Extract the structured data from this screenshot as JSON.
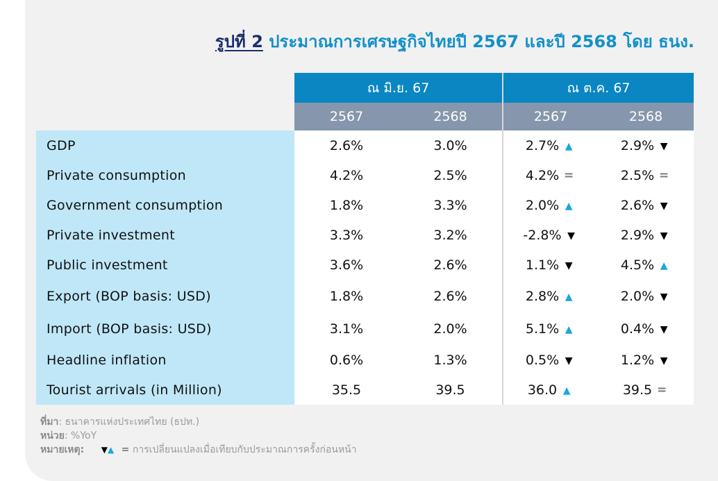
{
  "title": {
    "figure_label": "รูปที่ 2",
    "main": "ประมาณการเศรษฐกิจไทยปี 2567 และปี 2568 โดย ธนง."
  },
  "chart_data": {
    "type": "table",
    "column_groups": [
      {
        "label": "ณ มิ.ย. 67",
        "years": [
          "2567",
          "2568"
        ]
      },
      {
        "label": "ณ ต.ค. 67",
        "years": [
          "2567",
          "2568"
        ]
      }
    ],
    "rows": [
      {
        "label": "GDP",
        "jun_2567": "2.6%",
        "jun_2568": "3.0%",
        "oct_2567": "2.7%",
        "oct_2567_dir": "up",
        "oct_2568": "2.9%",
        "oct_2568_dir": "down"
      },
      {
        "label": "Private consumption",
        "jun_2567": "4.2%",
        "jun_2568": "2.5%",
        "oct_2567": "4.2%",
        "oct_2567_dir": "same",
        "oct_2568": "2.5%",
        "oct_2568_dir": "same"
      },
      {
        "label": "Government consumption",
        "jun_2567": "1.8%",
        "jun_2568": "3.3%",
        "oct_2567": "2.0%",
        "oct_2567_dir": "up",
        "oct_2568": "2.6%",
        "oct_2568_dir": "down"
      },
      {
        "label": "Private investment",
        "jun_2567": "3.3%",
        "jun_2568": "3.2%",
        "oct_2567": "-2.8%",
        "oct_2567_dir": "down",
        "oct_2568": "2.9%",
        "oct_2568_dir": "down"
      },
      {
        "label": "Public investment",
        "jun_2567": "3.6%",
        "jun_2568": "2.6%",
        "oct_2567": "1.1%",
        "oct_2567_dir": "down",
        "oct_2568": "4.5%",
        "oct_2568_dir": "up"
      },
      {
        "label": "Export (BOP basis: USD)",
        "jun_2567": "1.8%",
        "jun_2568": "2.6%",
        "oct_2567": "2.8%",
        "oct_2567_dir": "up",
        "oct_2568": "2.0%",
        "oct_2568_dir": "down"
      },
      {
        "label": "Import (BOP basis: USD)",
        "jun_2567": "3.1%",
        "jun_2568": "2.0%",
        "oct_2567": "5.1%",
        "oct_2567_dir": "up",
        "oct_2568": "0.4%",
        "oct_2568_dir": "down"
      },
      {
        "label": "Headline inflation",
        "jun_2567": "0.6%",
        "jun_2568": "1.3%",
        "oct_2567": "0.5%",
        "oct_2567_dir": "down",
        "oct_2568": "1.2%",
        "oct_2568_dir": "down"
      },
      {
        "label": "Tourist arrivals (in Million)",
        "jun_2567": "35.5",
        "jun_2568": "39.5",
        "oct_2567": "36.0",
        "oct_2567_dir": "up",
        "oct_2568": "39.5",
        "oct_2568_dir": "same"
      }
    ]
  },
  "colors": {
    "header_blue": "#0a86c2",
    "header_gray": "#8697ad",
    "label_bg": "#bfe7f7",
    "up_arrow": "#19a7dd",
    "down_arrow": "#000000",
    "equal_sign": "#7a7a7a",
    "title_blue": "#1490c8",
    "figure_label": "#1a2e6b"
  },
  "icons": {
    "up": "▲",
    "down": "▼",
    "same": "="
  },
  "notes": {
    "source_label": "ที่มา",
    "source_text": ": ธนาคารแห่งประเทศไทย (ธปท.)",
    "unit_label": "หน่วย",
    "unit_text": ": %YoY",
    "remark_label": "หมายเหตุ",
    "remark_text": "การเปลี่ยนแปลงเมื่อเทียบกับประมาณการครั้งก่อนหน้า"
  }
}
